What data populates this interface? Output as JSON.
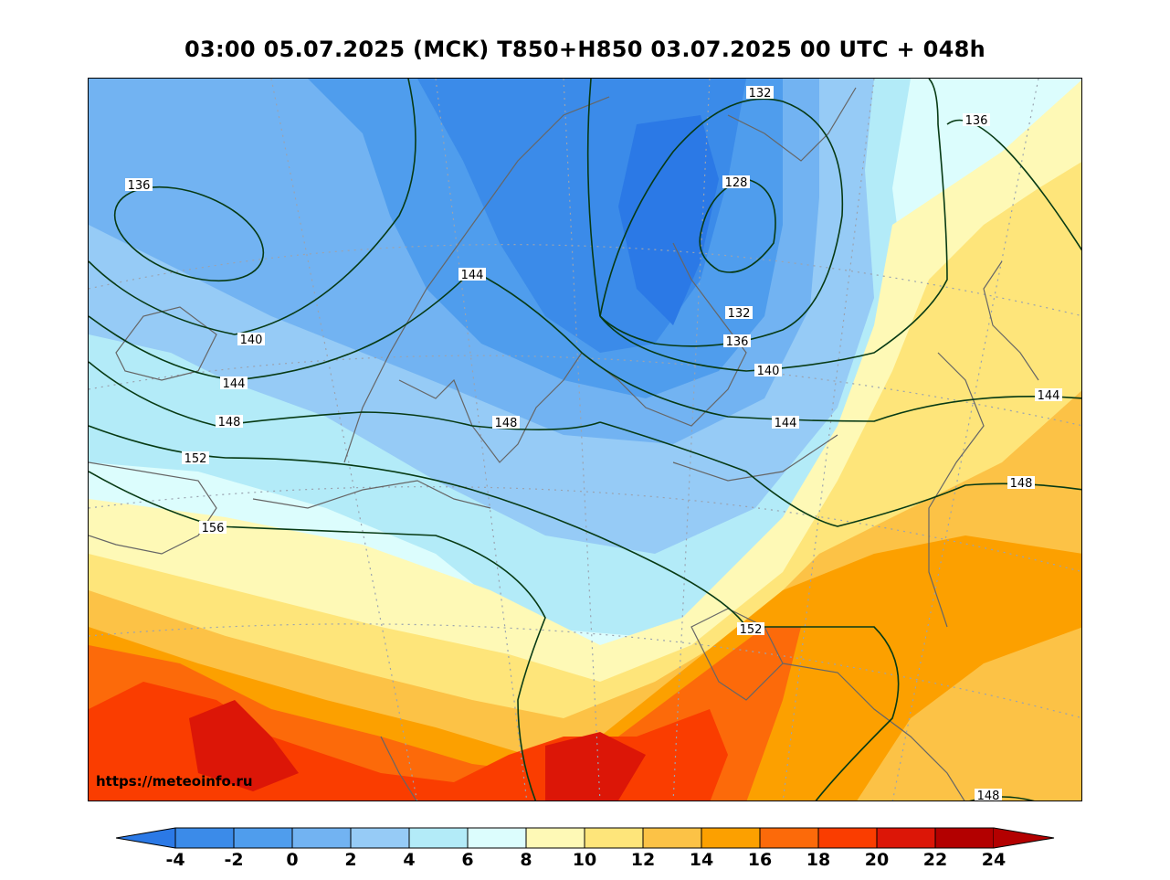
{
  "title": "03:00 05.07.2025 (MCK) T850+H850 03.07.2025 00 UTC + 048h",
  "credit": "https://meteoinfo.ru",
  "colors": {
    "c_m4": "#2b79e6",
    "c_m2": "#3b8be9",
    "c_0": "#4f9ded",
    "c_2": "#72b3f2",
    "c_4": "#96cbf6",
    "c_6": "#b3ebf8",
    "c_8": "#dcfdfd",
    "c_10": "#fef9b6",
    "c_12": "#fee57a",
    "c_14": "#fcc246",
    "c_16": "#fca000",
    "c_18": "#fc6a0a",
    "c_20": "#fa3d00",
    "c_22": "#dc1607",
    "c_24": "#b30000",
    "contour": "#073a14",
    "coast": "#666666"
  },
  "colorbar": {
    "levels": [
      "-4",
      "-2",
      "0",
      "2",
      "4",
      "6",
      "8",
      "10",
      "12",
      "14",
      "16",
      "18",
      "20",
      "22",
      "24"
    ]
  },
  "contour_labels": {
    "l132a": "132",
    "l128": "128",
    "l136a": "136",
    "l136b": "136",
    "l144a": "144",
    "l140a": "140",
    "l144b": "144",
    "l148a": "148",
    "l148b": "148",
    "l152a": "152",
    "l156": "156",
    "l132b": "132",
    "l136c": "136",
    "l140b": "140",
    "l144c": "144",
    "l144d": "144",
    "l148c": "148",
    "l152b": "152",
    "l148d": "148"
  }
}
